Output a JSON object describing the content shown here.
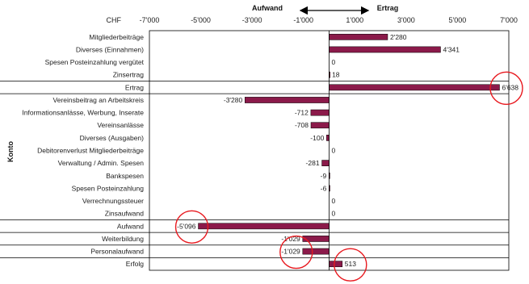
{
  "chart_data": {
    "type": "bar",
    "orientation": "horizontal",
    "currency_label": "CHF",
    "ylabel": "Konto",
    "header_left": "Aufwand",
    "header_right": "Ertrag",
    "xlim": [
      -7000,
      7000
    ],
    "ticks": [
      -7000,
      -5000,
      -3000,
      -1000,
      1000,
      3000,
      5000,
      7000
    ],
    "tick_labels": [
      "-7'000",
      "-5'000",
      "-3'000",
      "-1'000",
      "1'000",
      "3'000",
      "5'000",
      "7'000"
    ],
    "bar_color": "#8b1a4a",
    "highlight_color": "#e8191f",
    "rows": [
      {
        "label": "Mitgliederbeiträge",
        "value": 2280,
        "display": "2'280",
        "highlight": false,
        "separator_above": false
      },
      {
        "label": "Diverses (Einnahmen)",
        "value": 4341,
        "display": "4'341",
        "highlight": false,
        "separator_above": false
      },
      {
        "label": "Spesen Posteinzahlung vergütet",
        "value": 0,
        "display": "0",
        "highlight": false,
        "separator_above": false
      },
      {
        "label": "Zinsertrag",
        "value": 18,
        "display": "18",
        "highlight": false,
        "separator_above": false
      },
      {
        "label": "Ertrag",
        "value": 6638,
        "display": "6'638",
        "highlight": true,
        "separator_above": true
      },
      {
        "label": "Vereinsbeitrag an Arbeitskreis",
        "value": -3280,
        "display": "-3'280",
        "highlight": false,
        "separator_above": true
      },
      {
        "label": "Informationsanlässe, Werbung, Inserate",
        "value": -712,
        "display": "-712",
        "highlight": false,
        "separator_above": false
      },
      {
        "label": "Vereinsanlässe",
        "value": -708,
        "display": "-708",
        "highlight": false,
        "separator_above": false
      },
      {
        "label": "Diverses (Ausgaben)",
        "value": -100,
        "display": "-100",
        "highlight": false,
        "separator_above": false
      },
      {
        "label": "Debitorenverlust Mitgliederbeiträge",
        "value": 0,
        "display": "0",
        "highlight": false,
        "separator_above": false
      },
      {
        "label": "Verwaltung / Admin. Spesen",
        "value": -281,
        "display": "-281",
        "highlight": false,
        "separator_above": false
      },
      {
        "label": "Bankspesen",
        "value": -9,
        "display": "-9",
        "highlight": false,
        "separator_above": false
      },
      {
        "label": "Spesen Posteinzahlung",
        "value": -6,
        "display": "-6",
        "highlight": false,
        "separator_above": false
      },
      {
        "label": "Verrechnungssteuer",
        "value": 0,
        "display": "0",
        "highlight": false,
        "separator_above": false
      },
      {
        "label": "Zinsaufwand",
        "value": 0,
        "display": "0",
        "highlight": false,
        "separator_above": false
      },
      {
        "label": "Aufwand",
        "value": -5096,
        "display": "-5'096",
        "highlight": true,
        "separator_above": true
      },
      {
        "label": "Weiterbildung",
        "value": -1029,
        "display": "-1'029",
        "highlight": false,
        "separator_above": true
      },
      {
        "label": "Personalaufwand",
        "value": -1029,
        "display": "-1'029",
        "highlight": true,
        "separator_above": true
      },
      {
        "label": "Erfolg",
        "value": 513,
        "display": "513",
        "highlight": true,
        "separator_above": true
      }
    ]
  }
}
